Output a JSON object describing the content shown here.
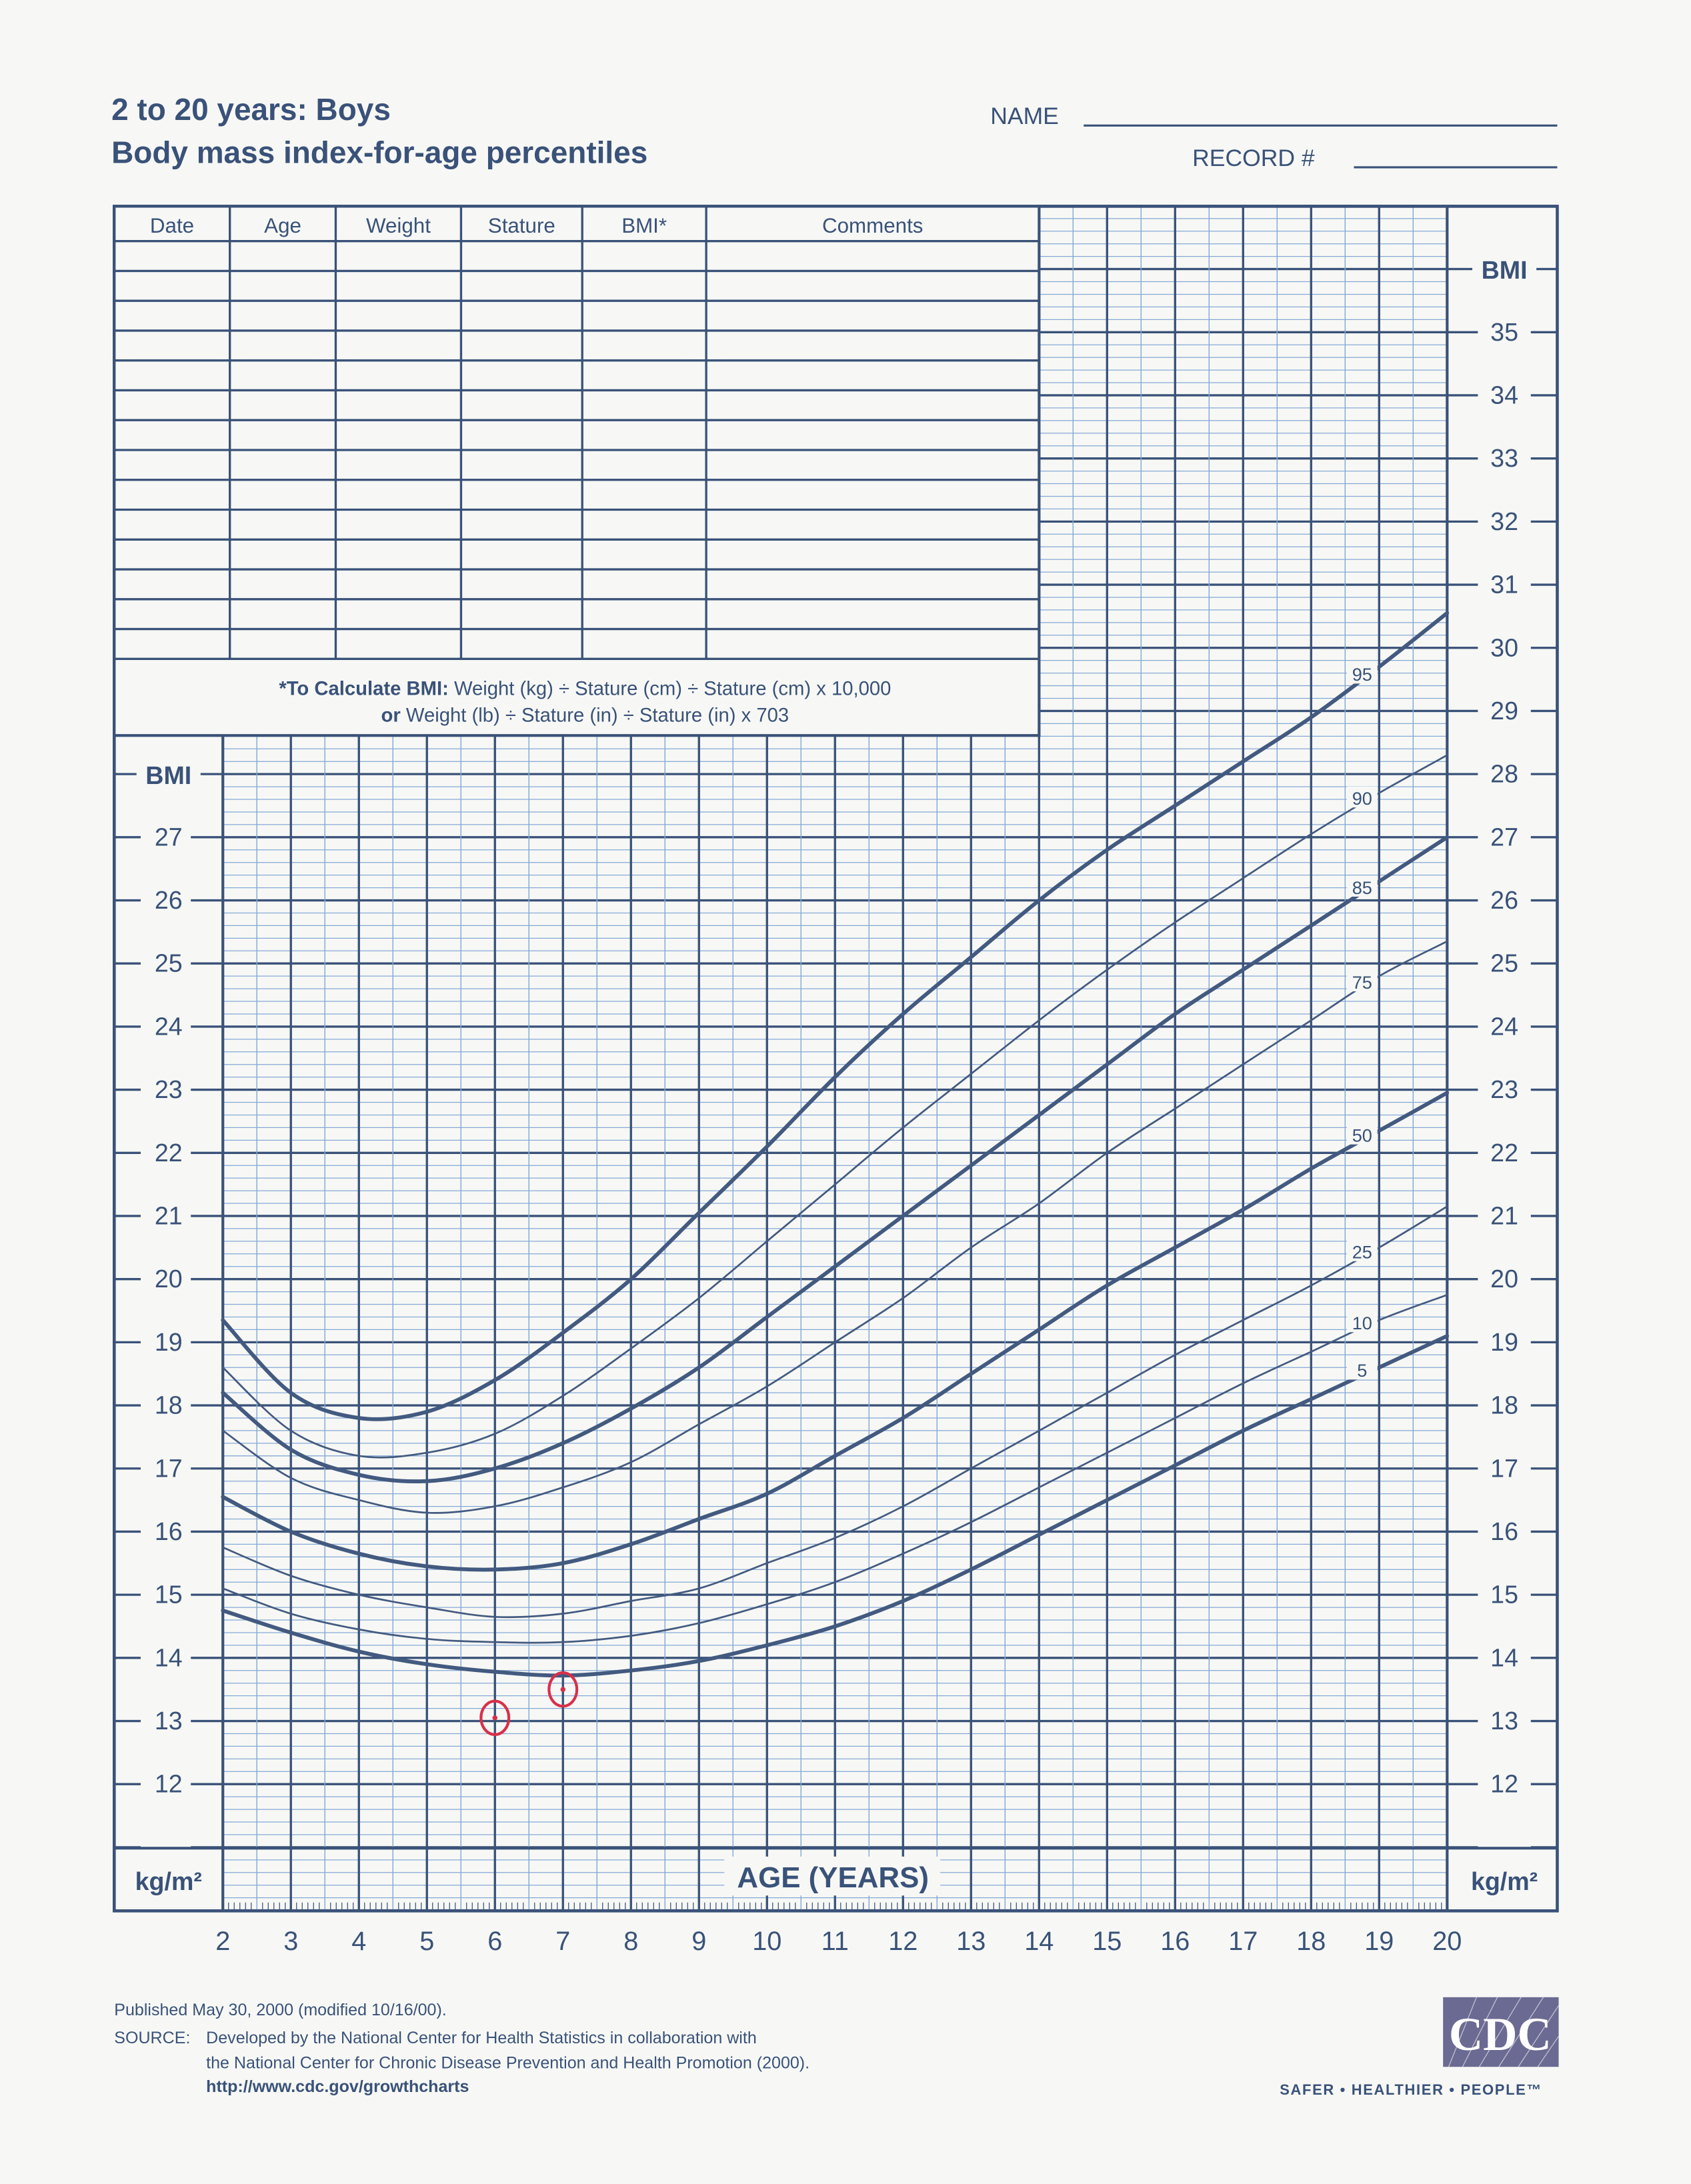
{
  "header": {
    "title_line1": "2 to 20 years: Boys",
    "title_line2": "Body mass index-for-age percentiles",
    "name_label": "NAME",
    "record_label": "RECORD #"
  },
  "record_table": {
    "columns": [
      "Date",
      "Age",
      "Weight",
      "Stature",
      "BMI*",
      "Comments"
    ],
    "rows": 14,
    "note_line1_bold": "*To Calculate BMI:",
    "note_line1_rest": " Weight (kg) ÷ Stature (cm) ÷ Stature (cm) x 10,000",
    "note_line2_bold": "or",
    "note_line2_rest": " Weight (lb) ÷ Stature (in) ÷ Stature (in) x 703"
  },
  "axes": {
    "y_title": "BMI",
    "y_unit": "kg/m²",
    "x_title": "AGE (YEARS)"
  },
  "footer": {
    "published": "Published May 30, 2000 (modified 10/16/00).",
    "source_label": "SOURCE:",
    "source_line1": "Developed by the National Center for Health Statistics in collaboration with",
    "source_line2": "the National Center for Chronic Disease Prevention and Health Promotion (2000).",
    "url": "http://www.cdc.gov/growthcharts",
    "logo_text": "CDC",
    "tagline": "SAFER • HEALTHIER • PEOPLE™"
  },
  "colors": {
    "ink": "#3a5279",
    "minor_grid": "#86a9d6",
    "paper": "#f7f8f5",
    "annotation": "#d8304a"
  },
  "chart_data": {
    "type": "line",
    "xlabel": "AGE (YEARS)",
    "ylabel": "BMI",
    "xlim": [
      2,
      20
    ],
    "ylim": [
      10,
      37
    ],
    "x_ticks": [
      2,
      3,
      4,
      5,
      6,
      7,
      8,
      9,
      10,
      11,
      12,
      13,
      14,
      15,
      16,
      17,
      18,
      19,
      20
    ],
    "y_ticks_left": [
      12,
      13,
      14,
      15,
      16,
      17,
      18,
      19,
      20,
      21,
      22,
      23,
      24,
      25,
      26,
      27
    ],
    "y_ticks_right": [
      12,
      13,
      14,
      15,
      16,
      17,
      18,
      19,
      20,
      21,
      22,
      23,
      24,
      25,
      26,
      27,
      28,
      29,
      30,
      31,
      32,
      33,
      34,
      35
    ],
    "grid": true,
    "x": [
      2,
      3,
      4,
      5,
      6,
      7,
      8,
      9,
      10,
      11,
      12,
      13,
      14,
      15,
      16,
      17,
      18,
      19,
      20
    ],
    "series": [
      {
        "name": "95",
        "weight": "heavy",
        "values": [
          19.35,
          18.2,
          17.8,
          17.9,
          18.4,
          19.15,
          20.0,
          21.05,
          22.1,
          23.2,
          24.2,
          25.1,
          26.0,
          26.8,
          27.5,
          28.2,
          28.9,
          29.7,
          30.55
        ]
      },
      {
        "name": "90",
        "weight": "light",
        "values": [
          18.6,
          17.6,
          17.2,
          17.25,
          17.55,
          18.15,
          18.9,
          19.7,
          20.6,
          21.5,
          22.4,
          23.25,
          24.1,
          24.9,
          25.65,
          26.35,
          27.05,
          27.7,
          28.3
        ]
      },
      {
        "name": "85",
        "weight": "heavy",
        "values": [
          18.2,
          17.3,
          16.9,
          16.8,
          17.0,
          17.4,
          17.95,
          18.6,
          19.4,
          20.2,
          21.0,
          21.8,
          22.6,
          23.4,
          24.2,
          24.9,
          25.6,
          26.3,
          27.0
        ]
      },
      {
        "name": "75",
        "weight": "light",
        "values": [
          17.6,
          16.85,
          16.5,
          16.3,
          16.4,
          16.7,
          17.1,
          17.7,
          18.3,
          19.0,
          19.7,
          20.5,
          21.2,
          22.0,
          22.7,
          23.4,
          24.1,
          24.8,
          25.35
        ]
      },
      {
        "name": "50",
        "weight": "heavy",
        "values": [
          16.55,
          16.0,
          15.65,
          15.45,
          15.4,
          15.5,
          15.8,
          16.2,
          16.6,
          17.2,
          17.8,
          18.5,
          19.2,
          19.9,
          20.5,
          21.1,
          21.75,
          22.35,
          22.95
        ]
      },
      {
        "name": "25",
        "weight": "light",
        "values": [
          15.75,
          15.3,
          15.0,
          14.8,
          14.65,
          14.7,
          14.9,
          15.1,
          15.5,
          15.9,
          16.4,
          17.0,
          17.6,
          18.2,
          18.8,
          19.35,
          19.9,
          20.5,
          21.15
        ]
      },
      {
        "name": "10",
        "weight": "light",
        "values": [
          15.1,
          14.7,
          14.45,
          14.3,
          14.25,
          14.25,
          14.35,
          14.55,
          14.85,
          15.2,
          15.65,
          16.15,
          16.7,
          17.25,
          17.8,
          18.35,
          18.85,
          19.35,
          19.75
        ]
      },
      {
        "name": "5",
        "weight": "heavy",
        "values": [
          14.75,
          14.4,
          14.1,
          13.9,
          13.78,
          13.72,
          13.8,
          13.95,
          14.2,
          14.5,
          14.9,
          15.4,
          15.95,
          16.5,
          17.05,
          17.6,
          18.1,
          18.6,
          19.1
        ]
      }
    ],
    "plotted_points": [
      {
        "age": 6.0,
        "bmi": 13.05
      },
      {
        "age": 7.0,
        "bmi": 13.5
      }
    ]
  }
}
